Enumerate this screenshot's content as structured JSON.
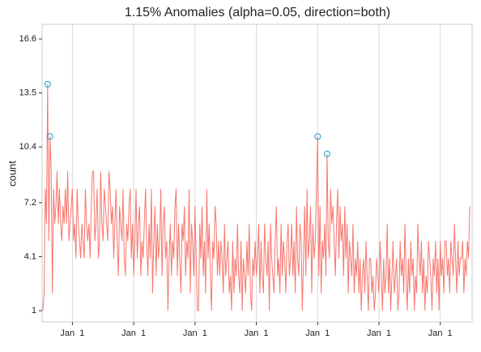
{
  "chart_data": {
    "type": "line",
    "title": "1.15% Anomalies (alpha=0.05, direction=both)",
    "ylabel": "count",
    "ylim": [
      0.35,
      17.44
    ],
    "yticks": [
      1,
      4.1,
      7.2,
      10.4,
      13.5,
      16.6
    ],
    "xlim": [
      -0.7,
      364
    ],
    "xticks": [
      {
        "value": 25,
        "label": "Jan  1"
      },
      {
        "value": 77,
        "label": "Jan  1"
      },
      {
        "value": 129,
        "label": "Jan  1"
      },
      {
        "value": 181,
        "label": "Jan  1"
      },
      {
        "value": 233,
        "label": "Jan  1"
      },
      {
        "value": 285,
        "label": "Jan  1"
      },
      {
        "value": 337,
        "label": "Jan  1"
      }
    ],
    "grid": true,
    "series": [
      {
        "color": "#f8766d",
        "values": [
          1,
          2,
          8,
          6,
          14,
          5,
          11,
          9,
          2,
          8,
          6,
          7,
          9,
          6,
          8,
          6,
          5,
          7,
          6,
          8,
          6,
          9,
          5,
          6,
          7,
          8,
          5,
          6,
          4,
          8,
          6,
          5,
          4,
          6,
          5,
          4,
          8,
          6,
          5,
          6,
          4,
          7,
          9,
          9,
          5,
          6,
          8,
          4,
          5,
          9,
          6,
          5,
          8,
          7,
          6,
          5,
          9,
          8,
          6,
          7,
          4,
          6,
          8,
          5,
          3,
          7,
          6,
          5,
          8,
          4,
          3,
          6,
          5,
          7,
          8,
          4,
          6,
          3,
          5,
          8,
          4,
          6,
          7,
          3,
          5,
          4,
          6,
          8,
          5,
          3,
          6,
          4,
          8,
          2,
          5,
          7,
          3,
          6,
          4,
          5,
          8,
          3,
          6,
          7,
          4,
          5,
          1,
          4,
          6,
          3,
          5,
          4,
          7,
          8,
          3,
          6,
          4,
          2,
          6,
          5,
          7,
          3,
          5,
          4,
          8,
          2,
          6,
          5,
          3,
          7,
          4,
          1,
          1,
          6,
          4,
          7,
          3,
          5,
          2,
          8,
          4,
          6,
          3,
          1,
          5,
          4,
          7,
          6,
          3,
          5,
          3,
          5,
          4,
          2,
          6,
          3,
          4,
          5,
          2,
          3,
          1,
          5,
          2,
          4,
          3,
          6,
          3,
          2,
          5,
          1,
          4,
          3,
          2,
          5,
          3,
          6,
          2,
          1,
          4,
          3,
          5,
          3,
          4,
          6,
          2,
          5,
          3,
          2,
          6,
          4,
          3,
          5,
          1,
          6,
          4,
          3,
          2,
          5,
          7,
          3,
          4,
          2,
          6,
          3,
          5,
          4,
          2,
          5,
          6,
          3,
          4,
          6,
          3,
          5,
          2,
          7,
          4,
          3,
          6,
          5,
          1,
          4,
          7,
          3,
          8,
          4,
          5,
          7,
          2,
          6,
          4,
          5,
          8,
          11,
          3,
          7,
          2,
          5,
          4,
          6,
          3,
          10,
          5,
          4,
          8,
          6,
          7,
          5,
          3,
          6,
          8,
          4,
          7,
          5,
          6,
          3,
          7,
          4,
          6,
          2,
          5,
          4,
          3,
          6,
          2,
          4,
          3,
          5,
          2,
          4,
          1,
          3,
          4,
          2,
          5,
          3,
          1,
          4,
          4,
          2,
          3,
          1,
          2,
          4,
          3,
          2,
          5,
          3,
          1,
          4,
          2,
          3,
          6,
          2,
          4,
          1,
          3,
          5,
          2,
          3,
          4,
          1,
          2,
          5,
          3,
          4,
          2,
          6,
          3,
          1,
          4,
          2,
          5,
          3,
          4,
          1,
          3,
          2,
          6,
          4,
          3,
          5,
          2,
          4,
          1,
          3,
          2,
          5,
          4,
          3,
          1,
          4,
          3,
          5,
          2,
          4,
          1,
          5,
          3,
          4,
          2,
          5,
          5,
          3,
          4,
          2,
          5,
          4,
          3,
          6,
          4,
          2,
          5,
          3,
          4,
          4,
          5,
          2,
          4,
          3,
          5,
          4,
          7
        ]
      }
    ],
    "anomalies": {
      "color": "#1f9ed1",
      "x": [
        4,
        6,
        233,
        241
      ],
      "values": [
        14,
        11,
        11,
        10
      ]
    }
  }
}
